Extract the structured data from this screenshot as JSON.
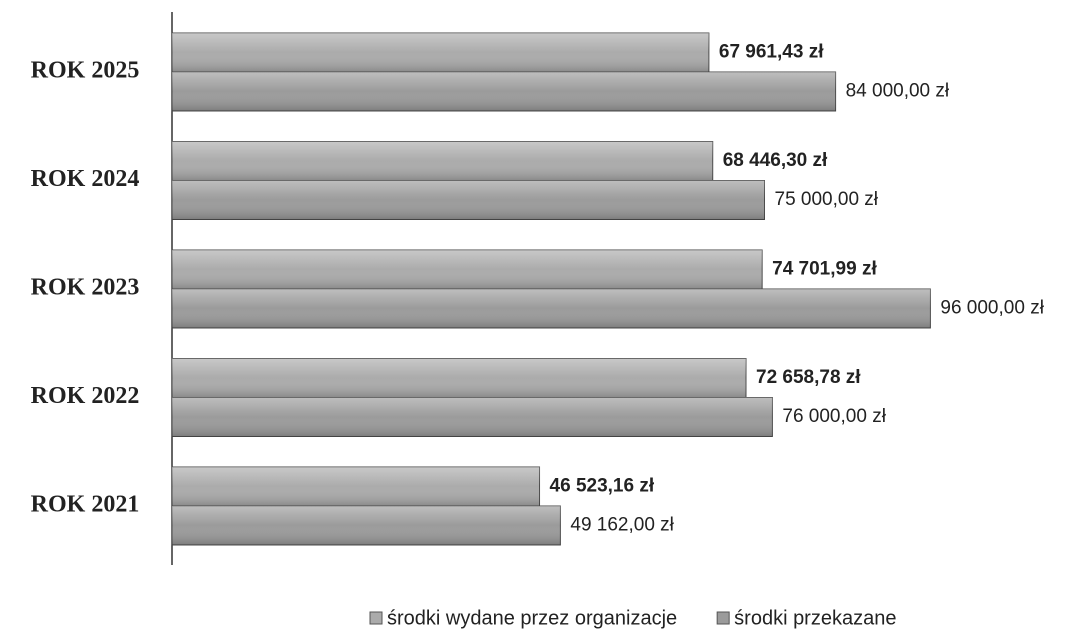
{
  "chart_data": {
    "type": "bar",
    "orientation": "horizontal",
    "categories": [
      "ROK 2025",
      "ROK 2024",
      "ROK 2023",
      "ROK 2022",
      "ROK 2021"
    ],
    "series": [
      {
        "name": "środki wydane przez organizacje",
        "color": "#ababab",
        "values": [
          67961.43,
          68446.3,
          74701.99,
          72658.78,
          46523.16
        ],
        "value_labels": [
          "67 961,43 zł",
          "68 446,30 zł",
          "74 701,99 zł",
          "72 658,78 zł",
          "46 523,16 zł"
        ]
      },
      {
        "name": "środki przekazane",
        "color": "#9b9b9b",
        "values": [
          84000,
          75000,
          96000,
          76000,
          49162
        ],
        "value_labels": [
          "84 000,00 zł",
          "75 000,00 zł",
          "96 000,00 zł",
          "76 000,00 zł",
          "49 162,00 zł"
        ]
      }
    ]
  }
}
